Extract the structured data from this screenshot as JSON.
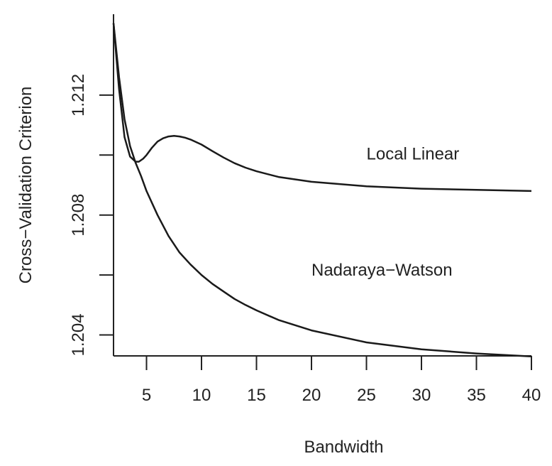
{
  "chart_data": {
    "type": "line",
    "title": "",
    "xlabel": "Bandwidth",
    "ylabel": "Cross−Validation Criterion",
    "xlim": [
      2,
      40
    ],
    "ylim": [
      1.2033,
      1.2147
    ],
    "grid": false,
    "legend": "none",
    "x_ticks": [
      5,
      10,
      15,
      20,
      25,
      30,
      35,
      40
    ],
    "x_tick_labels": [
      "5",
      "10",
      "15",
      "20",
      "25",
      "30",
      "35",
      "40"
    ],
    "y_ticks": [
      1.204,
      1.206,
      1.208,
      1.21,
      1.212
    ],
    "y_tick_labels": [
      "1.204",
      "",
      "1.208",
      "",
      "1.212"
    ],
    "annotations": [
      {
        "text": "Local Linear",
        "x": 25.0,
        "y": 1.20985
      },
      {
        "text": "Nadaraya−Watson",
        "x": 20.0,
        "y": 1.20598
      }
    ],
    "series": [
      {
        "key": "local-linear",
        "color": "#1a1a1a",
        "x": [
          2,
          2.5,
          3,
          3.5,
          4,
          4.3,
          4.7,
          5,
          5.5,
          6,
          6.5,
          7,
          7.5,
          8,
          8.5,
          9,
          10,
          11,
          12,
          13,
          14,
          15,
          17,
          20,
          25,
          30,
          35,
          40
        ],
        "y": [
          1.2144,
          1.2122,
          1.2106,
          1.20995,
          1.20978,
          1.20978,
          1.20988,
          1.21,
          1.21025,
          1.21045,
          1.21056,
          1.21062,
          1.21064,
          1.21062,
          1.21058,
          1.21052,
          1.21035,
          1.21013,
          1.20992,
          1.20973,
          1.20958,
          1.20946,
          1.20927,
          1.20911,
          1.20896,
          1.20888,
          1.20884,
          1.2088
        ]
      },
      {
        "key": "nadaraya-watson",
        "color": "#1a1a1a",
        "x": [
          2,
          2.5,
          3,
          3.5,
          4,
          4.5,
          5,
          6,
          7,
          8,
          9,
          10,
          11,
          12,
          13,
          14,
          15,
          17,
          20,
          25,
          30,
          35,
          40
        ],
        "y": [
          1.2144,
          1.2126,
          1.2112,
          1.2103,
          1.20975,
          1.2093,
          1.2088,
          1.208,
          1.2073,
          1.20675,
          1.20635,
          1.206,
          1.2057,
          1.20545,
          1.2052,
          1.205,
          1.20482,
          1.2045,
          1.20415,
          1.20375,
          1.20352,
          1.20338,
          1.20328
        ]
      }
    ]
  }
}
